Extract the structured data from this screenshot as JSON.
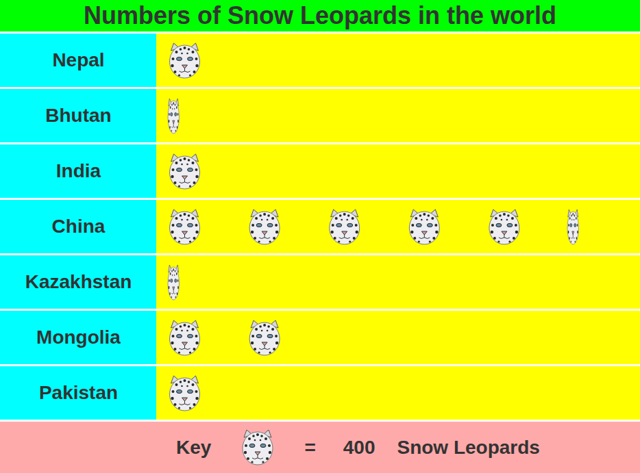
{
  "chart_data": {
    "type": "pictogram",
    "title": "Numbers of Snow Leopards in the world",
    "categories": [
      "Nepal",
      "Bhutan",
      "India",
      "China",
      "Kazakhstan",
      "Mongolia",
      "Pakistan"
    ],
    "values": [
      400,
      150,
      400,
      2150,
      150,
      800,
      400
    ],
    "key": {
      "label": "Key",
      "symbol": "=",
      "value": 400,
      "unit": "Snow Leopards"
    }
  }
}
